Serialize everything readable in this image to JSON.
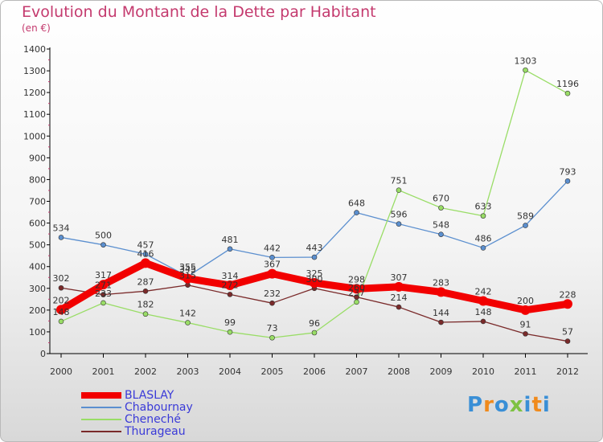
{
  "header": {
    "title": "Evolution du Montant de la Dette par Habitant",
    "subtitle": "(en €)"
  },
  "brand": {
    "logo_text": "Proxiti"
  },
  "colors": {
    "title": "#c43a6e",
    "axis": "#000000",
    "grid_tick": "#c43a6e",
    "legend_text": "#3a3ad8"
  },
  "chart_data": {
    "type": "line",
    "title": "Evolution du Montant de la Dette par Habitant",
    "ylabel": "(en €)",
    "xlabel": "",
    "ylim": [
      0,
      1400
    ],
    "yticks": [
      0,
      100,
      200,
      300,
      400,
      500,
      600,
      700,
      800,
      900,
      1000,
      1100,
      1200,
      1300,
      1400
    ],
    "categories": [
      "2000",
      "2001",
      "2002",
      "2003",
      "2004",
      "2005",
      "2006",
      "2007",
      "2008",
      "2009",
      "2010",
      "2011",
      "2012"
    ],
    "legend_position": "bottom-left",
    "series": [
      {
        "name": "BLASLAY",
        "color": "#f20000",
        "values": [
          202,
          317,
          416,
          345,
          314,
          367,
          325,
          298,
          307,
          283,
          242,
          200,
          228
        ]
      },
      {
        "name": "Chabournay",
        "color": "#5b8fcf",
        "values": [
          534,
          500,
          457,
          355,
          481,
          442,
          443,
          648,
          596,
          548,
          486,
          589,
          793
        ]
      },
      {
        "name": "Cheneché",
        "color": "#99dd66",
        "values": [
          148,
          233,
          182,
          142,
          99,
          73,
          96,
          237,
          751,
          670,
          633,
          1303,
          1196
        ]
      },
      {
        "name": "Thurageau",
        "color": "#7a2a2a",
        "values": [
          302,
          271,
          287,
          315,
          272,
          232,
          300,
          260,
          214,
          144,
          148,
          91,
          57
        ]
      }
    ]
  }
}
